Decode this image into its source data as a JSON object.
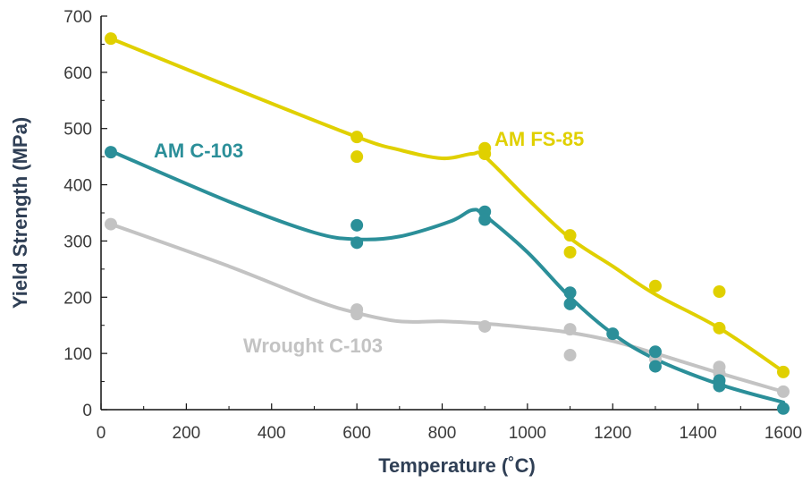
{
  "chart_data": {
    "type": "scatter",
    "xlabel": "Temperature (˚C)",
    "ylabel": "Yield Strength (MPa)",
    "xlim": [
      0,
      1600
    ],
    "ylim": [
      0,
      700
    ],
    "xticks": [
      "0",
      "200",
      "400",
      "600",
      "800",
      "1000",
      "1200",
      "1400",
      "1600"
    ],
    "yticks": [
      "0",
      "100",
      "200",
      "300",
      "400",
      "500",
      "600",
      "700"
    ],
    "grid": false,
    "series": [
      {
        "name": "AM FS-85",
        "color": "#e0d000",
        "points": [
          [
            23,
            660
          ],
          [
            600,
            485
          ],
          [
            600,
            450
          ],
          [
            900,
            465
          ],
          [
            900,
            455
          ],
          [
            1100,
            310
          ],
          [
            1100,
            280
          ],
          [
            1300,
            220
          ],
          [
            1450,
            210
          ],
          [
            1450,
            145
          ],
          [
            1600,
            67
          ]
        ],
        "trend": [
          [
            23,
            660
          ],
          [
            300,
            575
          ],
          [
            600,
            485
          ],
          [
            700,
            462
          ],
          [
            800,
            447
          ],
          [
            870,
            455
          ],
          [
            900,
            450
          ],
          [
            1000,
            375
          ],
          [
            1100,
            305
          ],
          [
            1200,
            255
          ],
          [
            1300,
            205
          ],
          [
            1450,
            145
          ],
          [
            1600,
            68
          ]
        ]
      },
      {
        "name": "AM C-103",
        "color": "#2b8f99",
        "points": [
          [
            23,
            458
          ],
          [
            600,
            328
          ],
          [
            600,
            297
          ],
          [
            900,
            352
          ],
          [
            900,
            338
          ],
          [
            1100,
            208
          ],
          [
            1100,
            188
          ],
          [
            1200,
            135
          ],
          [
            1300,
            103
          ],
          [
            1300,
            77
          ],
          [
            1450,
            52
          ],
          [
            1450,
            42
          ],
          [
            1600,
            2
          ]
        ],
        "trend": [
          [
            23,
            460
          ],
          [
            300,
            370
          ],
          [
            500,
            315
          ],
          [
            600,
            303
          ],
          [
            700,
            308
          ],
          [
            820,
            335
          ],
          [
            870,
            355
          ],
          [
            900,
            345
          ],
          [
            1000,
            280
          ],
          [
            1100,
            200
          ],
          [
            1200,
            135
          ],
          [
            1300,
            90
          ],
          [
            1450,
            45
          ],
          [
            1600,
            13
          ]
        ]
      },
      {
        "name": "Wrought C-103",
        "color": "#c3c3c3",
        "points": [
          [
            23,
            330
          ],
          [
            600,
            178
          ],
          [
            600,
            170
          ],
          [
            900,
            148
          ],
          [
            1100,
            143
          ],
          [
            1100,
            97
          ],
          [
            1300,
            102
          ],
          [
            1300,
            90
          ],
          [
            1450,
            76
          ],
          [
            1450,
            65
          ],
          [
            1600,
            32
          ]
        ],
        "trend": [
          [
            23,
            330
          ],
          [
            300,
            255
          ],
          [
            500,
            195
          ],
          [
            600,
            172
          ],
          [
            700,
            157
          ],
          [
            800,
            157
          ],
          [
            900,
            153
          ],
          [
            1000,
            146
          ],
          [
            1100,
            137
          ],
          [
            1200,
            122
          ],
          [
            1300,
            100
          ],
          [
            1450,
            65
          ],
          [
            1600,
            32
          ]
        ]
      }
    ]
  }
}
